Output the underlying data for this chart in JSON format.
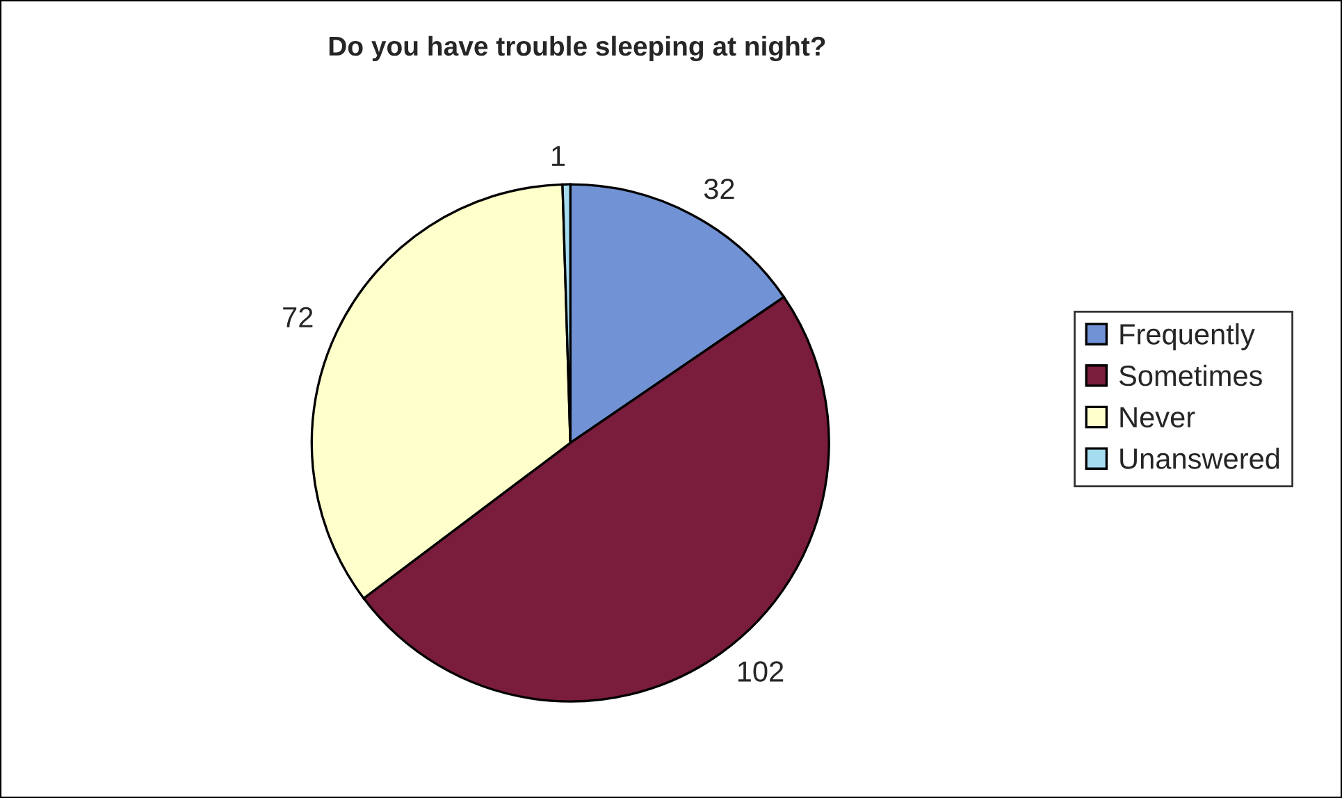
{
  "chart_data": {
    "type": "pie",
    "title": "Do you have trouble sleeping at night?",
    "categories": [
      "Frequently",
      "Sometimes",
      "Never",
      "Unanswered"
    ],
    "values": [
      32,
      102,
      72,
      1
    ],
    "colors": [
      "#7192d4",
      "#7a1c3c",
      "#ffffcc",
      "#a6dcf0"
    ],
    "data_labels": true,
    "legend": "right"
  }
}
